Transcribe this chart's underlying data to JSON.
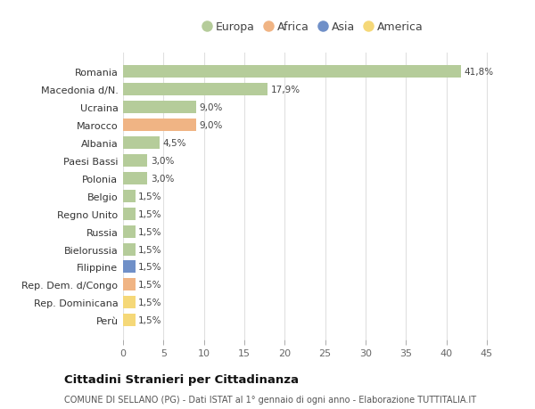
{
  "title": "Cittadini Stranieri per Cittadinanza",
  "subtitle": "COMUNE DI SELLANO (PG) - Dati ISTAT al 1° gennaio di ogni anno - Elaborazione TUTTITALIA.IT",
  "legend_labels": [
    "Europa",
    "Africa",
    "Asia",
    "America"
  ],
  "legend_colors": [
    "#b5cc9a",
    "#f0b484",
    "#7090c8",
    "#f5d878"
  ],
  "countries": [
    "Romania",
    "Macedonia d/N.",
    "Ucraina",
    "Marocco",
    "Albania",
    "Paesi Bassi",
    "Polonia",
    "Belgio",
    "Regno Unito",
    "Russia",
    "Bielorussia",
    "Filippine",
    "Rep. Dem. d/Congo",
    "Rep. Dominicana",
    "Perù"
  ],
  "values": [
    41.8,
    17.9,
    9.0,
    9.0,
    4.5,
    3.0,
    3.0,
    1.5,
    1.5,
    1.5,
    1.5,
    1.5,
    1.5,
    1.5,
    1.5
  ],
  "bar_colors": [
    "#b5cc9a",
    "#b5cc9a",
    "#b5cc9a",
    "#f0b484",
    "#b5cc9a",
    "#b5cc9a",
    "#b5cc9a",
    "#b5cc9a",
    "#b5cc9a",
    "#b5cc9a",
    "#b5cc9a",
    "#7090c8",
    "#f0b484",
    "#f5d878",
    "#f5d878"
  ],
  "labels": [
    "41,8%",
    "17,9%",
    "9,0%",
    "9,0%",
    "4,5%",
    "3,0%",
    "3,0%",
    "1,5%",
    "1,5%",
    "1,5%",
    "1,5%",
    "1,5%",
    "1,5%",
    "1,5%",
    "1,5%"
  ],
  "xlim": [
    0,
    47
  ],
  "xticks": [
    0,
    5,
    10,
    15,
    20,
    25,
    30,
    35,
    40,
    45
  ],
  "background_color": "#ffffff",
  "grid_color": "#e0e0e0",
  "bar_height": 0.7
}
